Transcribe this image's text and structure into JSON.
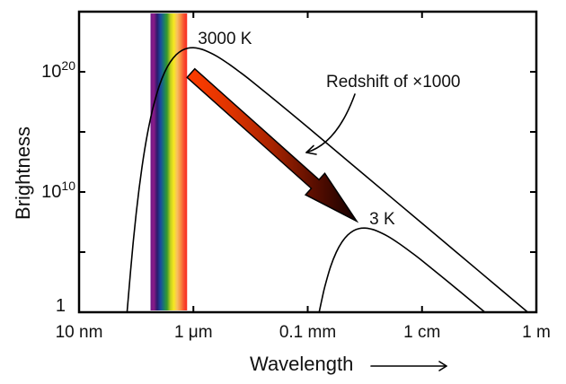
{
  "chart_data": {
    "type": "line",
    "title": "",
    "xlabel": "Wavelength",
    "ylabel": "Brightness",
    "xscale": "log",
    "yscale": "log",
    "x_units": "log10(wavelength / m)",
    "y_units": "log10(brightness)",
    "xlim": [
      -8,
      0
    ],
    "ylim": [
      0,
      25
    ],
    "grid": false,
    "legend": "none",
    "x_ticks": [
      {
        "value": -8,
        "label": "10 nm"
      },
      {
        "value": -6,
        "label": "1 μm"
      },
      {
        "value": -4,
        "label": "0.1 mm"
      },
      {
        "value": -2,
        "label": "1 cm"
      },
      {
        "value": 0,
        "label": "1 m"
      }
    ],
    "y_ticks": [
      {
        "value": 0,
        "base": "1",
        "exp": ""
      },
      {
        "value": 5,
        "base": "",
        "exp": ""
      },
      {
        "value": 10,
        "base": "10",
        "exp": "10"
      },
      {
        "value": 15,
        "base": "",
        "exp": ""
      },
      {
        "value": 20,
        "base": "10",
        "exp": "20"
      }
    ],
    "series": [
      {
        "name": "3000 K",
        "color": "#000000",
        "points": [
          [
            -7.16,
            0.0
          ],
          [
            -7.1,
            3.36
          ],
          [
            -7.05,
            5.96
          ],
          [
            -7.0,
            8.25
          ],
          [
            -6.95,
            10.27
          ],
          [
            -6.9,
            12.04
          ],
          [
            -6.85,
            13.59
          ],
          [
            -6.8,
            14.94
          ],
          [
            -6.75,
            16.11
          ],
          [
            -6.7,
            17.14
          ],
          [
            -6.6,
            18.79
          ],
          [
            -6.5,
            19.99
          ],
          [
            -6.4,
            20.84
          ],
          [
            -6.3,
            21.42
          ],
          [
            -6.2,
            21.78
          ],
          [
            -6.1,
            21.96
          ],
          [
            -6.0,
            22.0
          ],
          [
            -5.9,
            21.93
          ],
          [
            -5.8,
            21.78
          ],
          [
            -5.6,
            21.32
          ],
          [
            -5.4,
            20.71
          ],
          [
            -5.2,
            20.02
          ],
          [
            -5.0,
            19.29
          ],
          [
            -4.5,
            17.36
          ],
          [
            -4.0,
            15.39
          ],
          [
            -3.0,
            11.39
          ],
          [
            -2.0,
            7.4
          ],
          [
            -1.0,
            3.4
          ],
          [
            -0.15,
            0.0
          ]
        ]
      },
      {
        "name": "3 K",
        "color": "#000000",
        "points": [
          [
            -3.8,
            0.0
          ],
          [
            -3.75,
            1.11
          ],
          [
            -3.7,
            2.14
          ],
          [
            -3.6,
            3.79
          ],
          [
            -3.5,
            4.99
          ],
          [
            -3.4,
            5.84
          ],
          [
            -3.3,
            6.42
          ],
          [
            -3.2,
            6.78
          ],
          [
            -3.1,
            6.96
          ],
          [
            -3.0,
            7.0
          ],
          [
            -2.9,
            6.93
          ],
          [
            -2.8,
            6.78
          ],
          [
            -2.6,
            6.32
          ],
          [
            -2.4,
            5.71
          ],
          [
            -2.2,
            5.02
          ],
          [
            -2.0,
            4.29
          ],
          [
            -1.5,
            2.36
          ],
          [
            -1.0,
            0.39
          ],
          [
            -0.9,
            0.0
          ]
        ]
      }
    ],
    "annotations": [
      {
        "text": "Redshift of ×1000"
      }
    ],
    "visible_band": {
      "range": [
        -6.75,
        -6.11
      ],
      "colors": [
        "#6e1a86",
        "#8a1a88",
        "#2c1a6c",
        "#1a4aa0",
        "#1a7a6c",
        "#3a9a2a",
        "#c0d020",
        "#f8e820",
        "#f8c060",
        "#f89040",
        "#f85030",
        "#f82a20"
      ]
    },
    "redshift_arrow": {
      "gradient": [
        "#ff3c00",
        "#e03400",
        "#a82400",
        "#5a0e00",
        "#140000"
      ]
    }
  }
}
